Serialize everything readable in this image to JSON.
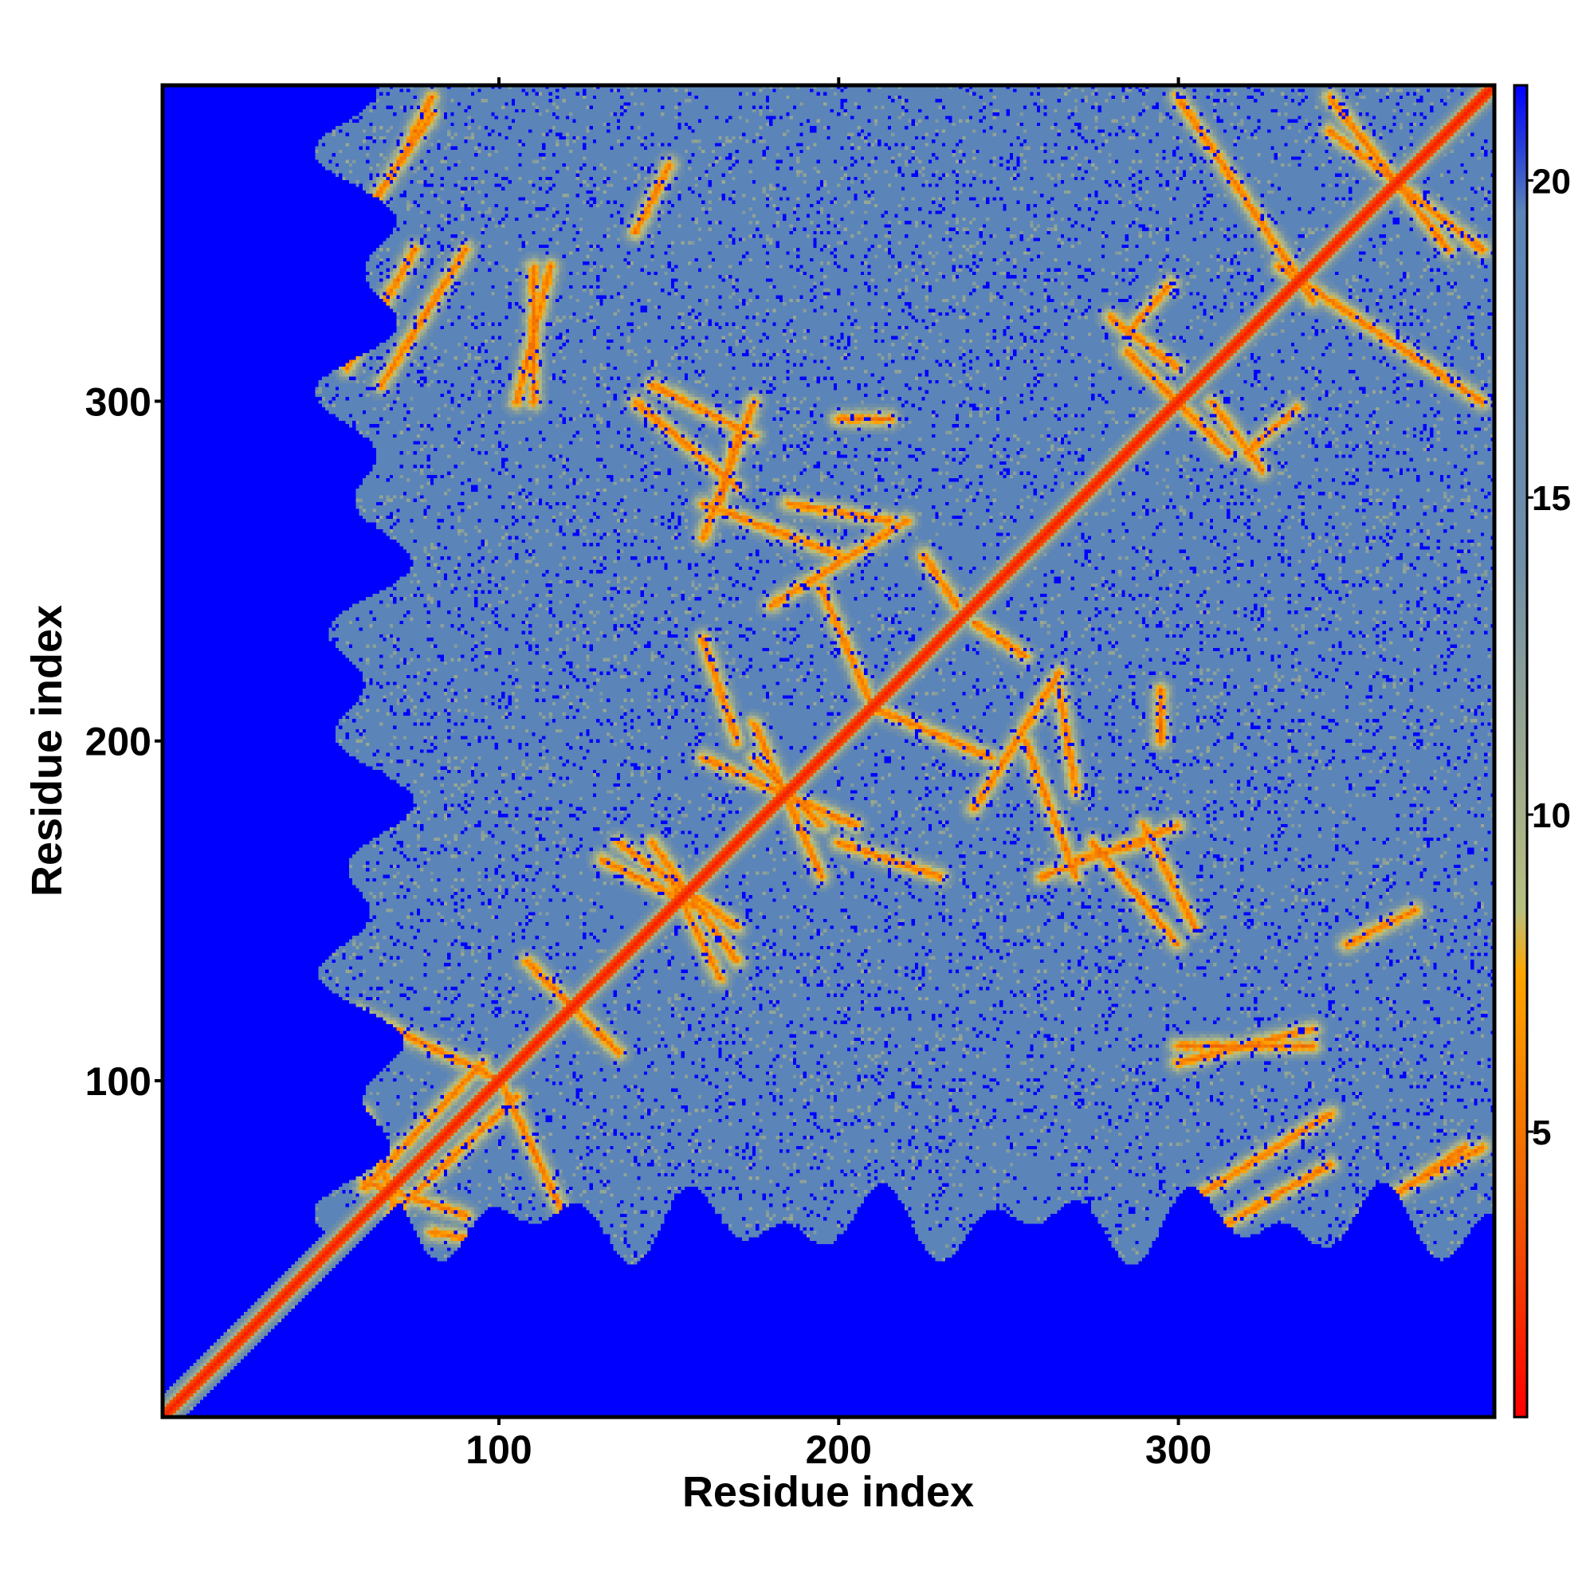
{
  "chart_data": {
    "type": "heatmap",
    "title": "",
    "xlabel": "Residue index",
    "ylabel": "Residue index",
    "n_residues": 393,
    "xlim": [
      1,
      393
    ],
    "ylim": [
      1,
      393
    ],
    "x_ticks": [
      100,
      200,
      300
    ],
    "y_ticks": [
      100,
      200,
      300
    ],
    "grid": false,
    "colorbar": {
      "ticks": [
        5,
        10,
        15,
        20
      ],
      "range": [
        0.5,
        21.5
      ],
      "placement": "right",
      "stops": [
        {
          "value": 0.5,
          "color": "#ff0000"
        },
        {
          "value": 4,
          "color": "#f06000"
        },
        {
          "value": 7.5,
          "color": "#ffa500"
        },
        {
          "value": 8.5,
          "color": "#b8c080"
        },
        {
          "value": 11,
          "color": "#9aa890"
        },
        {
          "value": 14,
          "color": "#6f8fa8"
        },
        {
          "value": 19.5,
          "color": "#5b84b8"
        },
        {
          "value": 20.5,
          "color": "#2a40d8"
        },
        {
          "value": 21.5,
          "color": "#0000ff"
        }
      ]
    },
    "colors": {
      "no_data": "#0000ff",
      "background_distance": "#5b84b8",
      "near_contact": "#ff0000",
      "close_contact": "#ff8c00",
      "mid_contact": "#b8c37f"
    },
    "structure": {
      "valid_start_col": {
        "x_lo": 45,
        "x_hi": 75
      },
      "valid_start_row": {
        "y_lo": 45,
        "y_hi": 70
      },
      "background_value": 19.5,
      "diagonal": {
        "value": 1.5,
        "width": 2
      },
      "contact_lines": [
        {
          "x1": 60,
          "y1": 68,
          "x2": 95,
          "y2": 105
        },
        {
          "x1": 70,
          "y1": 60,
          "x2": 60,
          "y2": 90
        },
        {
          "x1": 80,
          "y1": 55,
          "x2": 120,
          "y2": 48
        },
        {
          "x1": 100,
          "y1": 100,
          "x2": 120,
          "y2": 58
        },
        {
          "x1": 118,
          "y1": 125,
          "x2": 135,
          "y2": 108
        },
        {
          "x1": 145,
          "y1": 170,
          "x2": 170,
          "y2": 135
        },
        {
          "x1": 165,
          "y1": 130,
          "x2": 150,
          "y2": 160
        },
        {
          "x1": 180,
          "y1": 190,
          "x2": 195,
          "y2": 175
        },
        {
          "x1": 175,
          "y1": 205,
          "x2": 195,
          "y2": 160
        },
        {
          "x1": 200,
          "y1": 170,
          "x2": 230,
          "y2": 160
        },
        {
          "x1": 210,
          "y1": 210,
          "x2": 195,
          "y2": 245
        },
        {
          "x1": 225,
          "y1": 255,
          "x2": 235,
          "y2": 240
        },
        {
          "x1": 240,
          "y1": 180,
          "x2": 265,
          "y2": 220
        },
        {
          "x1": 255,
          "y1": 200,
          "x2": 270,
          "y2": 160
        },
        {
          "x1": 270,
          "y1": 165,
          "x2": 290,
          "y2": 170
        },
        {
          "x1": 290,
          "y1": 175,
          "x2": 305,
          "y2": 145
        },
        {
          "x1": 300,
          "y1": 110,
          "x2": 340,
          "y2": 110
        },
        {
          "x1": 305,
          "y1": 65,
          "x2": 345,
          "y2": 90
        },
        {
          "x1": 370,
          "y1": 70,
          "x2": 390,
          "y2": 80
        },
        {
          "x1": 290,
          "y1": 310,
          "x2": 315,
          "y2": 285
        },
        {
          "x1": 310,
          "y1": 300,
          "x2": 325,
          "y2": 280
        },
        {
          "x1": 285,
          "y1": 320,
          "x2": 298,
          "y2": 335
        },
        {
          "x1": 330,
          "y1": 340,
          "x2": 390,
          "y2": 300
        },
        {
          "x1": 345,
          "y1": 380,
          "x2": 390,
          "y2": 345
        },
        {
          "x1": 55,
          "y1": 310,
          "x2": 75,
          "y2": 345
        },
        {
          "x1": 60,
          "y1": 355,
          "x2": 80,
          "y2": 385
        },
        {
          "x1": 105,
          "y1": 300,
          "x2": 115,
          "y2": 340
        },
        {
          "x1": 140,
          "y1": 300,
          "x2": 170,
          "y2": 275
        },
        {
          "x1": 160,
          "y1": 260,
          "x2": 175,
          "y2": 300
        },
        {
          "x1": 140,
          "y1": 350,
          "x2": 150,
          "y2": 370
        },
        {
          "x1": 185,
          "y1": 270,
          "x2": 215,
          "y2": 265
        },
        {
          "x1": 200,
          "y1": 295,
          "x2": 215,
          "y2": 295
        }
      ]
    }
  }
}
